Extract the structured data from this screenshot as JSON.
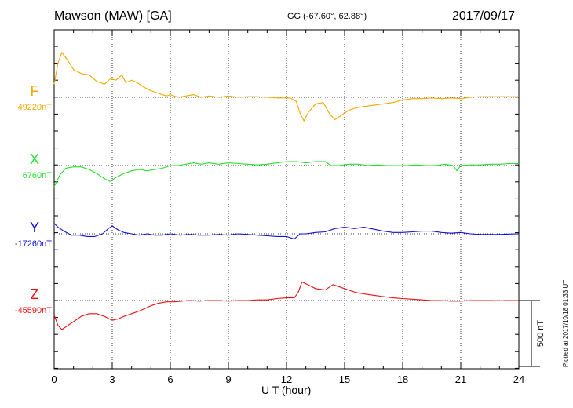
{
  "header": {
    "station": "Mawson (MAW)  [GA]",
    "coords": "GG (-67.60°,  62.88°)",
    "date": "2017/09/17",
    "plotted_note": "Plotted at 2017/10/18 01:33 UT"
  },
  "chart_data": {
    "type": "line",
    "xlabel": "U T (hour)",
    "xlim": [
      0,
      24
    ],
    "xticks": [
      "0",
      "3",
      "6",
      "9",
      "12",
      "15",
      "18",
      "21",
      "24"
    ],
    "scale_bar_label": "500 nT",
    "scale_bar_nT": 500,
    "series": [
      {
        "name": "F",
        "baseline_label": "49220nT",
        "baseline_nT": 49220,
        "color": "#f4a800",
        "points": [
          [
            0,
            49320
          ],
          [
            0.2,
            49480
          ],
          [
            0.4,
            49560
          ],
          [
            0.7,
            49500
          ],
          [
            1.0,
            49430
          ],
          [
            1.4,
            49400
          ],
          [
            1.8,
            49390
          ],
          [
            2.2,
            49340
          ],
          [
            2.6,
            49320
          ],
          [
            2.9,
            49360
          ],
          [
            3.2,
            49350
          ],
          [
            3.5,
            49390
          ],
          [
            3.7,
            49330
          ],
          [
            4.0,
            49350
          ],
          [
            4.3,
            49330
          ],
          [
            4.6,
            49300
          ],
          [
            5.0,
            49270
          ],
          [
            5.4,
            49250
          ],
          [
            5.8,
            49230
          ],
          [
            6.0,
            49240
          ],
          [
            6.4,
            49220
          ],
          [
            6.8,
            49230
          ],
          [
            7.2,
            49240
          ],
          [
            7.6,
            49220
          ],
          [
            8.0,
            49230
          ],
          [
            8.5,
            49220
          ],
          [
            9.0,
            49230
          ],
          [
            9.5,
            49220
          ],
          [
            10.0,
            49225
          ],
          [
            10.5,
            49225
          ],
          [
            11.0,
            49220
          ],
          [
            11.5,
            49215
          ],
          [
            12.2,
            49215
          ],
          [
            12.5,
            49190
          ],
          [
            12.7,
            49100
          ],
          [
            12.9,
            49040
          ],
          [
            13.1,
            49100
          ],
          [
            13.5,
            49170
          ],
          [
            13.9,
            49180
          ],
          [
            14.2,
            49100
          ],
          [
            14.5,
            49050
          ],
          [
            14.8,
            49080
          ],
          [
            15.2,
            49120
          ],
          [
            15.6,
            49140
          ],
          [
            16.0,
            49150
          ],
          [
            16.5,
            49160
          ],
          [
            17.0,
            49170
          ],
          [
            17.5,
            49180
          ],
          [
            18.0,
            49200
          ],
          [
            18.5,
            49210
          ],
          [
            19.0,
            49210
          ],
          [
            19.5,
            49215
          ],
          [
            20.0,
            49210
          ],
          [
            20.5,
            49215
          ],
          [
            21.0,
            49210
          ],
          [
            21.5,
            49220
          ],
          [
            22.0,
            49225
          ],
          [
            22.5,
            49225
          ],
          [
            23.0,
            49225
          ],
          [
            23.5,
            49225
          ],
          [
            24.0,
            49225
          ]
        ]
      },
      {
        "name": "X",
        "baseline_label": "6760nT",
        "baseline_nT": 6760,
        "color": "#22e02b",
        "points": [
          [
            0,
            6600
          ],
          [
            0.3,
            6690
          ],
          [
            0.6,
            6740
          ],
          [
            1.0,
            6750
          ],
          [
            1.4,
            6750
          ],
          [
            1.8,
            6730
          ],
          [
            2.2,
            6700
          ],
          [
            2.6,
            6660
          ],
          [
            2.9,
            6640
          ],
          [
            3.2,
            6670
          ],
          [
            3.6,
            6700
          ],
          [
            4.0,
            6720
          ],
          [
            4.4,
            6730
          ],
          [
            4.8,
            6720
          ],
          [
            5.2,
            6730
          ],
          [
            5.6,
            6740
          ],
          [
            6.0,
            6760
          ],
          [
            6.4,
            6760
          ],
          [
            6.8,
            6770
          ],
          [
            7.2,
            6780
          ],
          [
            7.6,
            6770
          ],
          [
            8.0,
            6780
          ],
          [
            8.5,
            6770
          ],
          [
            9.0,
            6780
          ],
          [
            9.5,
            6775
          ],
          [
            10.0,
            6770
          ],
          [
            10.5,
            6765
          ],
          [
            11.0,
            6770
          ],
          [
            11.5,
            6780
          ],
          [
            12.0,
            6790
          ],
          [
            12.5,
            6790
          ],
          [
            13.0,
            6780
          ],
          [
            13.5,
            6790
          ],
          [
            14.0,
            6790
          ],
          [
            14.3,
            6760
          ],
          [
            14.7,
            6760
          ],
          [
            15.2,
            6770
          ],
          [
            15.7,
            6770
          ],
          [
            16.2,
            6760
          ],
          [
            16.7,
            6765
          ],
          [
            17.2,
            6760
          ],
          [
            17.7,
            6760
          ],
          [
            18.2,
            6760
          ],
          [
            18.7,
            6765
          ],
          [
            19.2,
            6760
          ],
          [
            19.7,
            6760
          ],
          [
            20.2,
            6770
          ],
          [
            20.6,
            6760
          ],
          [
            20.8,
            6720
          ],
          [
            21.0,
            6760
          ],
          [
            21.5,
            6765
          ],
          [
            22.0,
            6765
          ],
          [
            22.5,
            6770
          ],
          [
            23.0,
            6770
          ],
          [
            23.5,
            6775
          ],
          [
            24.0,
            6775
          ]
        ]
      },
      {
        "name": "Y",
        "baseline_label": "-17260nT",
        "baseline_nT": -17260,
        "color": "#1010d8",
        "points": [
          [
            0,
            -17180
          ],
          [
            0.2,
            -17210
          ],
          [
            0.5,
            -17240
          ],
          [
            0.9,
            -17270
          ],
          [
            1.3,
            -17270
          ],
          [
            1.7,
            -17280
          ],
          [
            2.1,
            -17280
          ],
          [
            2.5,
            -17260
          ],
          [
            2.8,
            -17220
          ],
          [
            3.0,
            -17200
          ],
          [
            3.3,
            -17230
          ],
          [
            3.6,
            -17250
          ],
          [
            4.0,
            -17260
          ],
          [
            4.4,
            -17270
          ],
          [
            4.8,
            -17260
          ],
          [
            5.2,
            -17270
          ],
          [
            5.6,
            -17270
          ],
          [
            6.0,
            -17260
          ],
          [
            6.5,
            -17270
          ],
          [
            7.0,
            -17265
          ],
          [
            7.5,
            -17270
          ],
          [
            8.0,
            -17270
          ],
          [
            8.5,
            -17265
          ],
          [
            9.0,
            -17270
          ],
          [
            9.5,
            -17260
          ],
          [
            10.0,
            -17265
          ],
          [
            10.5,
            -17270
          ],
          [
            11.0,
            -17275
          ],
          [
            11.5,
            -17280
          ],
          [
            12.0,
            -17280
          ],
          [
            12.4,
            -17300
          ],
          [
            12.7,
            -17260
          ],
          [
            13.0,
            -17260
          ],
          [
            13.5,
            -17250
          ],
          [
            14.0,
            -17245
          ],
          [
            14.5,
            -17220
          ],
          [
            15.0,
            -17210
          ],
          [
            15.5,
            -17220
          ],
          [
            16.0,
            -17210
          ],
          [
            16.5,
            -17225
          ],
          [
            17.0,
            -17240
          ],
          [
            17.5,
            -17250
          ],
          [
            18.0,
            -17250
          ],
          [
            18.5,
            -17245
          ],
          [
            19.0,
            -17240
          ],
          [
            19.5,
            -17240
          ],
          [
            20.0,
            -17250
          ],
          [
            20.5,
            -17255
          ],
          [
            21.0,
            -17250
          ],
          [
            21.5,
            -17260
          ],
          [
            22.0,
            -17265
          ],
          [
            22.5,
            -17265
          ],
          [
            23.0,
            -17265
          ],
          [
            23.5,
            -17262
          ],
          [
            24.0,
            -17260
          ]
        ]
      },
      {
        "name": "Z",
        "baseline_label": "-45590nT",
        "baseline_nT": -45590,
        "color": "#e81010",
        "points": [
          [
            0,
            -45700
          ],
          [
            0.2,
            -45780
          ],
          [
            0.4,
            -45810
          ],
          [
            0.7,
            -45780
          ],
          [
            1.0,
            -45750
          ],
          [
            1.4,
            -45710
          ],
          [
            1.8,
            -45690
          ],
          [
            2.2,
            -45690
          ],
          [
            2.6,
            -45710
          ],
          [
            3.0,
            -45740
          ],
          [
            3.3,
            -45730
          ],
          [
            3.6,
            -45710
          ],
          [
            4.0,
            -45690
          ],
          [
            4.4,
            -45670
          ],
          [
            4.7,
            -45650
          ],
          [
            5.0,
            -45630
          ],
          [
            5.4,
            -45610
          ],
          [
            5.8,
            -45600
          ],
          [
            6.2,
            -45600
          ],
          [
            6.6,
            -45595
          ],
          [
            7.0,
            -45590
          ],
          [
            7.5,
            -45595
          ],
          [
            8.0,
            -45590
          ],
          [
            8.5,
            -45590
          ],
          [
            9.0,
            -45595
          ],
          [
            9.5,
            -45590
          ],
          [
            10.0,
            -45590
          ],
          [
            10.5,
            -45585
          ],
          [
            11.0,
            -45585
          ],
          [
            11.5,
            -45575
          ],
          [
            12.0,
            -45570
          ],
          [
            12.4,
            -45570
          ],
          [
            12.6,
            -45530
          ],
          [
            12.8,
            -45450
          ],
          [
            13.1,
            -45470
          ],
          [
            13.5,
            -45500
          ],
          [
            14.0,
            -45510
          ],
          [
            14.4,
            -45470
          ],
          [
            14.8,
            -45490
          ],
          [
            15.2,
            -45510
          ],
          [
            15.6,
            -45530
          ],
          [
            16.0,
            -45540
          ],
          [
            16.5,
            -45550
          ],
          [
            17.0,
            -45560
          ],
          [
            17.5,
            -45570
          ],
          [
            18.0,
            -45575
          ],
          [
            18.5,
            -45580
          ],
          [
            19.0,
            -45585
          ],
          [
            19.5,
            -45590
          ],
          [
            20.0,
            -45590
          ],
          [
            20.5,
            -45595
          ],
          [
            21.0,
            -45595
          ],
          [
            21.5,
            -45590
          ],
          [
            22.0,
            -45590
          ],
          [
            22.5,
            -45590
          ],
          [
            23.0,
            -45592
          ],
          [
            23.5,
            -45590
          ],
          [
            24.0,
            -45590
          ]
        ]
      }
    ]
  }
}
